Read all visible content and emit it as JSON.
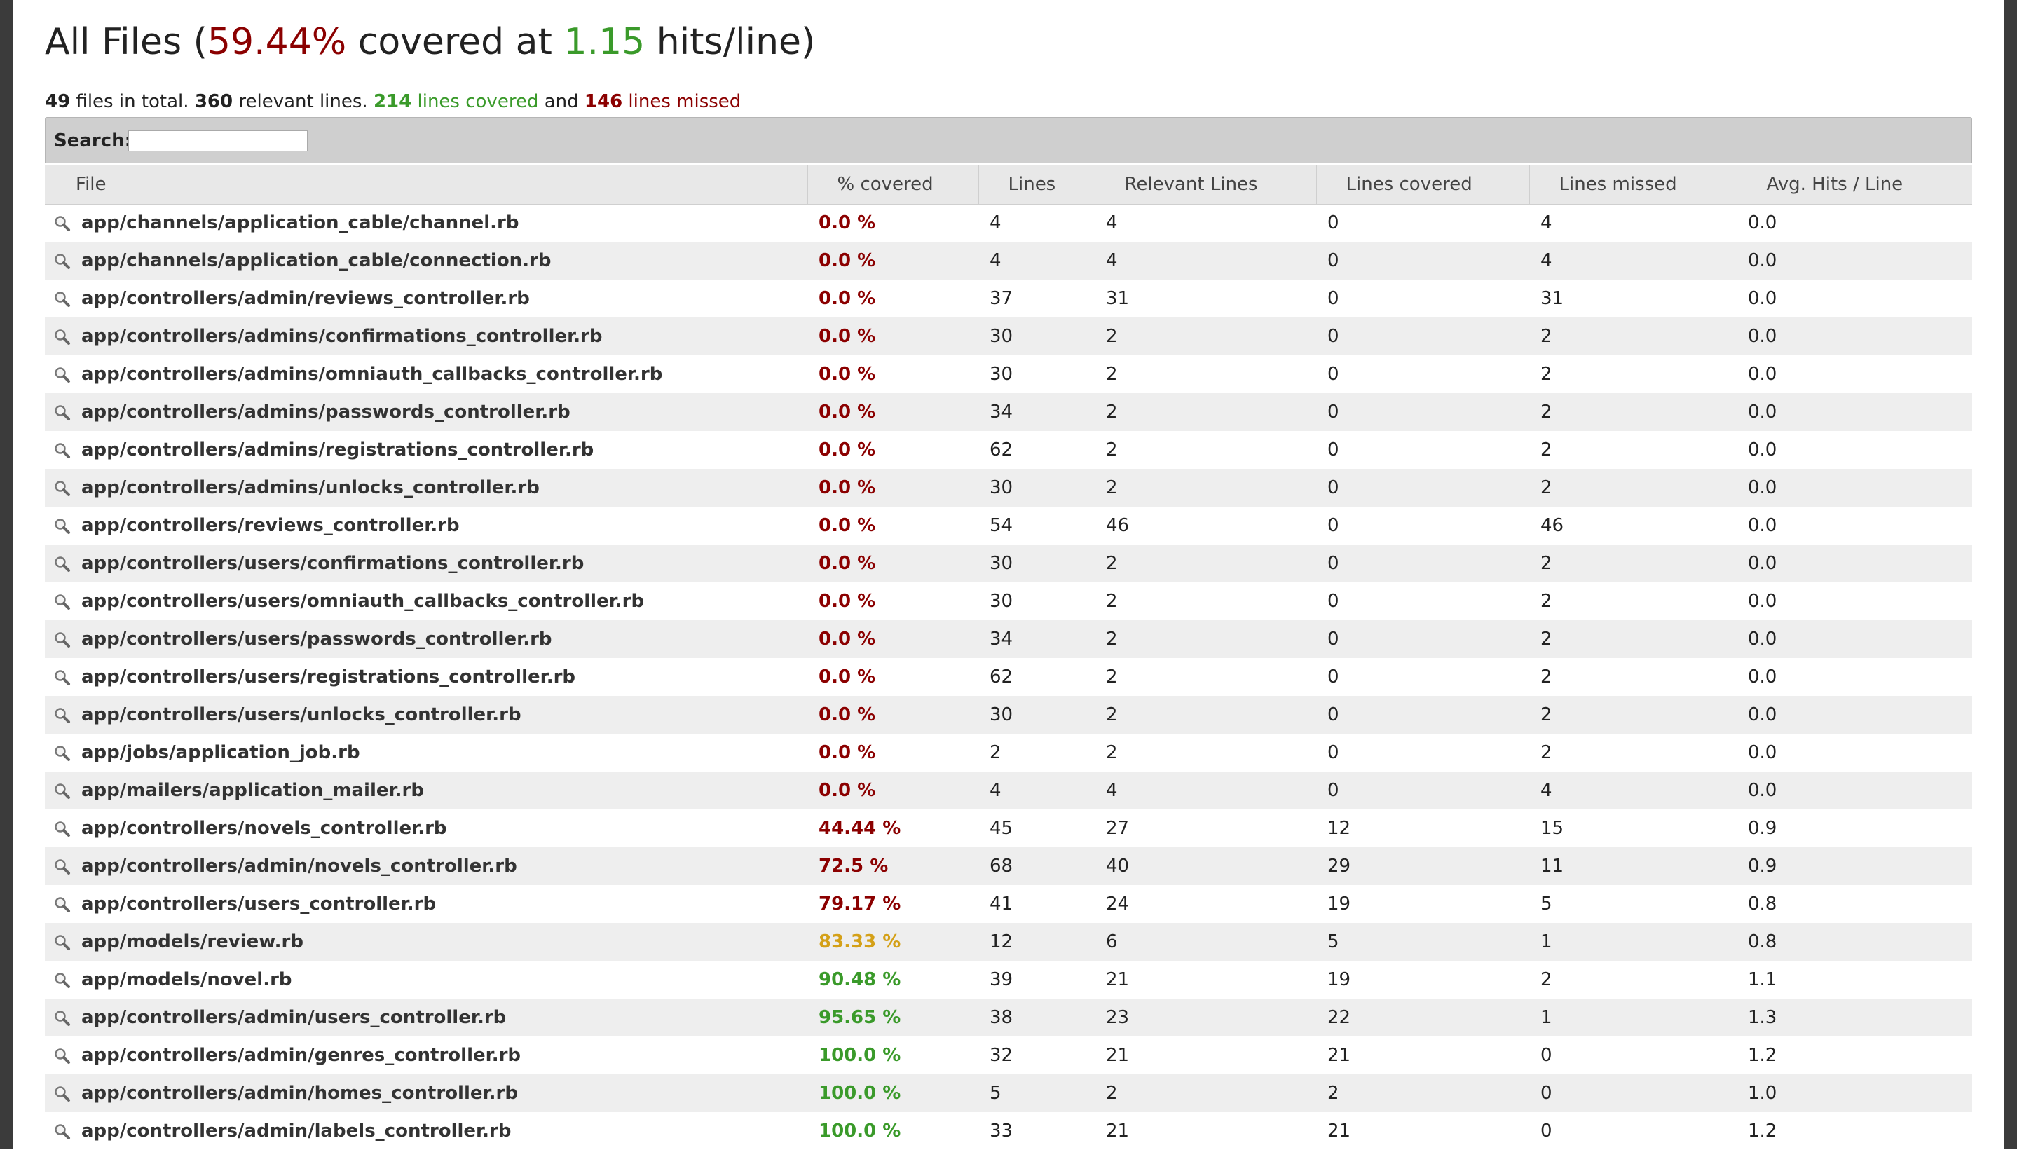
{
  "header": {
    "title_prefix": "All Files (",
    "percent": "59.44%",
    "mid": " covered at ",
    "hits": "1.15",
    "suffix": " hits/line)"
  },
  "summary": {
    "files": "49",
    "files_label": " files in total. ",
    "relevant": "360",
    "relevant_label": " relevant lines. ",
    "covered": "214",
    "covered_label": " lines covered",
    "and": " and ",
    "missed": "146",
    "missed_label": " lines missed"
  },
  "search": {
    "label": "Search:",
    "value": ""
  },
  "columns": [
    "File",
    "% covered",
    "Lines",
    "Relevant Lines",
    "Lines covered",
    "Lines missed",
    "Avg. Hits / Line"
  ],
  "colors": {
    "low": "#8b0000",
    "mid": "#d4a017",
    "high": "#3a9a2a"
  },
  "rows": [
    {
      "file": "app/channels/application_cable/channel.rb",
      "pct": "0.0 %",
      "lines": "4",
      "relevant": "4",
      "covered": "0",
      "missed": "4",
      "avg": "0.0",
      "level": "low"
    },
    {
      "file": "app/channels/application_cable/connection.rb",
      "pct": "0.0 %",
      "lines": "4",
      "relevant": "4",
      "covered": "0",
      "missed": "4",
      "avg": "0.0",
      "level": "low"
    },
    {
      "file": "app/controllers/admin/reviews_controller.rb",
      "pct": "0.0 %",
      "lines": "37",
      "relevant": "31",
      "covered": "0",
      "missed": "31",
      "avg": "0.0",
      "level": "low"
    },
    {
      "file": "app/controllers/admins/confirmations_controller.rb",
      "pct": "0.0 %",
      "lines": "30",
      "relevant": "2",
      "covered": "0",
      "missed": "2",
      "avg": "0.0",
      "level": "low"
    },
    {
      "file": "app/controllers/admins/omniauth_callbacks_controller.rb",
      "pct": "0.0 %",
      "lines": "30",
      "relevant": "2",
      "covered": "0",
      "missed": "2",
      "avg": "0.0",
      "level": "low"
    },
    {
      "file": "app/controllers/admins/passwords_controller.rb",
      "pct": "0.0 %",
      "lines": "34",
      "relevant": "2",
      "covered": "0",
      "missed": "2",
      "avg": "0.0",
      "level": "low"
    },
    {
      "file": "app/controllers/admins/registrations_controller.rb",
      "pct": "0.0 %",
      "lines": "62",
      "relevant": "2",
      "covered": "0",
      "missed": "2",
      "avg": "0.0",
      "level": "low"
    },
    {
      "file": "app/controllers/admins/unlocks_controller.rb",
      "pct": "0.0 %",
      "lines": "30",
      "relevant": "2",
      "covered": "0",
      "missed": "2",
      "avg": "0.0",
      "level": "low"
    },
    {
      "file": "app/controllers/reviews_controller.rb",
      "pct": "0.0 %",
      "lines": "54",
      "relevant": "46",
      "covered": "0",
      "missed": "46",
      "avg": "0.0",
      "level": "low"
    },
    {
      "file": "app/controllers/users/confirmations_controller.rb",
      "pct": "0.0 %",
      "lines": "30",
      "relevant": "2",
      "covered": "0",
      "missed": "2",
      "avg": "0.0",
      "level": "low"
    },
    {
      "file": "app/controllers/users/omniauth_callbacks_controller.rb",
      "pct": "0.0 %",
      "lines": "30",
      "relevant": "2",
      "covered": "0",
      "missed": "2",
      "avg": "0.0",
      "level": "low"
    },
    {
      "file": "app/controllers/users/passwords_controller.rb",
      "pct": "0.0 %",
      "lines": "34",
      "relevant": "2",
      "covered": "0",
      "missed": "2",
      "avg": "0.0",
      "level": "low"
    },
    {
      "file": "app/controllers/users/registrations_controller.rb",
      "pct": "0.0 %",
      "lines": "62",
      "relevant": "2",
      "covered": "0",
      "missed": "2",
      "avg": "0.0",
      "level": "low"
    },
    {
      "file": "app/controllers/users/unlocks_controller.rb",
      "pct": "0.0 %",
      "lines": "30",
      "relevant": "2",
      "covered": "0",
      "missed": "2",
      "avg": "0.0",
      "level": "low"
    },
    {
      "file": "app/jobs/application_job.rb",
      "pct": "0.0 %",
      "lines": "2",
      "relevant": "2",
      "covered": "0",
      "missed": "2",
      "avg": "0.0",
      "level": "low"
    },
    {
      "file": "app/mailers/application_mailer.rb",
      "pct": "0.0 %",
      "lines": "4",
      "relevant": "4",
      "covered": "0",
      "missed": "4",
      "avg": "0.0",
      "level": "low"
    },
    {
      "file": "app/controllers/novels_controller.rb",
      "pct": "44.44 %",
      "lines": "45",
      "relevant": "27",
      "covered": "12",
      "missed": "15",
      "avg": "0.9",
      "level": "low"
    },
    {
      "file": "app/controllers/admin/novels_controller.rb",
      "pct": "72.5 %",
      "lines": "68",
      "relevant": "40",
      "covered": "29",
      "missed": "11",
      "avg": "0.9",
      "level": "low"
    },
    {
      "file": "app/controllers/users_controller.rb",
      "pct": "79.17 %",
      "lines": "41",
      "relevant": "24",
      "covered": "19",
      "missed": "5",
      "avg": "0.8",
      "level": "low"
    },
    {
      "file": "app/models/review.rb",
      "pct": "83.33 %",
      "lines": "12",
      "relevant": "6",
      "covered": "5",
      "missed": "1",
      "avg": "0.8",
      "level": "mid"
    },
    {
      "file": "app/models/novel.rb",
      "pct": "90.48 %",
      "lines": "39",
      "relevant": "21",
      "covered": "19",
      "missed": "2",
      "avg": "1.1",
      "level": "high"
    },
    {
      "file": "app/controllers/admin/users_controller.rb",
      "pct": "95.65 %",
      "lines": "38",
      "relevant": "23",
      "covered": "22",
      "missed": "1",
      "avg": "1.3",
      "level": "high"
    },
    {
      "file": "app/controllers/admin/genres_controller.rb",
      "pct": "100.0 %",
      "lines": "32",
      "relevant": "21",
      "covered": "21",
      "missed": "0",
      "avg": "1.2",
      "level": "high"
    },
    {
      "file": "app/controllers/admin/homes_controller.rb",
      "pct": "100.0 %",
      "lines": "5",
      "relevant": "2",
      "covered": "2",
      "missed": "0",
      "avg": "1.0",
      "level": "high"
    },
    {
      "file": "app/controllers/admin/labels_controller.rb",
      "pct": "100.0 %",
      "lines": "33",
      "relevant": "21",
      "covered": "21",
      "missed": "0",
      "avg": "1.2",
      "level": "high"
    }
  ]
}
